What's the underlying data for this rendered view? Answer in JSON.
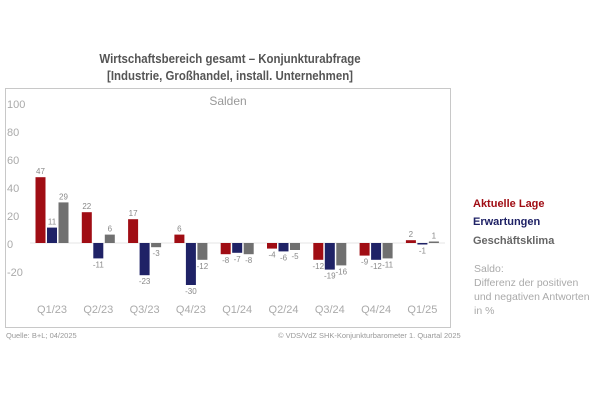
{
  "title_line1": "Wirtschaftsbereich gesamt – Konjunkturabfrage",
  "title_line2": "[Industrie, Großhandel, install. Unternehmen]",
  "chart_data": {
    "type": "bar",
    "title": "Salden",
    "categories": [
      "Q1/23",
      "Q2/23",
      "Q3/23",
      "Q4/23",
      "Q1/24",
      "Q2/24",
      "Q3/24",
      "Q4/24",
      "Q1/25"
    ],
    "series": [
      {
        "name": "Aktuelle Lage",
        "color": "#a00d14",
        "values": [
          47,
          22,
          17,
          6,
          -8,
          -4,
          -12,
          -9,
          2
        ]
      },
      {
        "name": "Erwartungen",
        "color": "#1f2266",
        "values": [
          11,
          -11,
          -23,
          -30,
          -7,
          -6,
          -19,
          -12,
          -1
        ]
      },
      {
        "name": "Geschäftsklima",
        "color": "#707070",
        "values": [
          29,
          6,
          -3,
          -12,
          -8,
          -5,
          -16,
          -11,
          1
        ]
      }
    ],
    "yticks": [
      100,
      80,
      60,
      40,
      20,
      0,
      -20
    ],
    "ylim": [
      -40,
      100
    ],
    "grid": false,
    "legend": "right"
  },
  "note": [
    "Saldo:",
    "Differenz der positiven",
    "und negativen Antworten",
    "in %"
  ],
  "source": "Quelle: B+L; 04/2025",
  "copyright": "© VDS/VdZ SHK-Konjunkturbarometer 1. Quartal 2025"
}
